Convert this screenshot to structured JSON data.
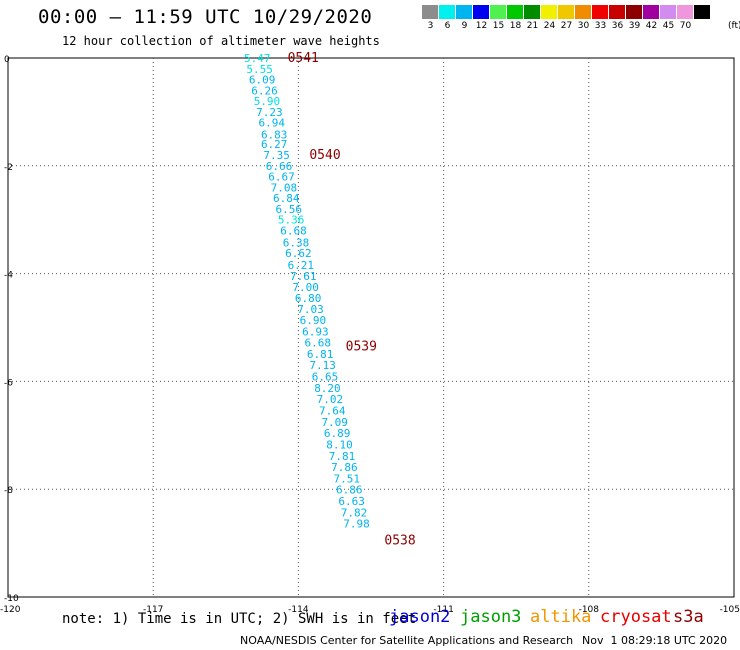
{
  "header": {
    "title": "00:00 – 11:59 UTC 10/29/2020",
    "subtitle": "12 hour collection of altimeter wave heights"
  },
  "legend": {
    "levels": [
      {
        "label": "3",
        "color": "#8c8c8c"
      },
      {
        "label": "6",
        "color": "#00f0f0"
      },
      {
        "label": "9",
        "color": "#00b4f0"
      },
      {
        "label": "12",
        "color": "#0000f0"
      },
      {
        "label": "15",
        "color": "#50f050"
      },
      {
        "label": "18",
        "color": "#00c800"
      },
      {
        "label": "21",
        "color": "#008c00"
      },
      {
        "label": "24",
        "color": "#f0f000"
      },
      {
        "label": "27",
        "color": "#f0c800"
      },
      {
        "label": "30",
        "color": "#f08c00"
      },
      {
        "label": "33",
        "color": "#f00000"
      },
      {
        "label": "36",
        "color": "#c80000"
      },
      {
        "label": "39",
        "color": "#8c0000"
      },
      {
        "label": "42",
        "color": "#a000a0"
      },
      {
        "label": "45",
        "color": "#d28cf0"
      },
      {
        "label": "70",
        "color": "#f096dc"
      },
      {
        "label": "",
        "color": "#000000"
      }
    ],
    "unit": "(ft)"
  },
  "chart_data": {
    "type": "scatter",
    "title": "00:00 – 11:59 UTC 10/29/2020",
    "xlim": [
      -120,
      -105
    ],
    "ylim": [
      -10,
      0
    ],
    "x_ticks": [
      "-120",
      "-117",
      "-114",
      "-111",
      "-108",
      "-105"
    ],
    "x_tick_values": [
      -120,
      -117,
      -114,
      -111,
      -108,
      -105
    ],
    "y_ticks": [
      "0",
      "-2",
      "-4",
      "-6",
      "-8",
      "-10"
    ],
    "y_tick_values": [
      0,
      -2,
      -4,
      -6,
      -8,
      -10
    ],
    "grid": true,
    "series": [
      {
        "type": "swh_labels",
        "points": [
          {
            "lon": -114.85,
            "lat": 0.0,
            "swh": "5.47",
            "color": "#00e0e0"
          },
          {
            "lon": -114.8,
            "lat": -0.2,
            "swh": "5.55",
            "color": "#00e0e0"
          },
          {
            "lon": -114.75,
            "lat": -0.4,
            "swh": "6.09",
            "color": "#00b4f0"
          },
          {
            "lon": -114.7,
            "lat": -0.6,
            "swh": "6.26",
            "color": "#00b4f0"
          },
          {
            "lon": -114.65,
            "lat": -0.8,
            "swh": "5.90",
            "color": "#00e0e0"
          },
          {
            "lon": -114.6,
            "lat": -1.0,
            "swh": "7.23",
            "color": "#00b4f0"
          },
          {
            "lon": -114.55,
            "lat": -1.2,
            "swh": "6.94",
            "color": "#00b4f0"
          },
          {
            "lon": -114.5,
            "lat": -1.42,
            "swh": "6.83",
            "color": "#00b4f0"
          },
          {
            "lon": -114.5,
            "lat": -1.6,
            "swh": "6.27",
            "color": "#00b4f0"
          },
          {
            "lon": -114.45,
            "lat": -1.8,
            "swh": "7.35",
            "color": "#00b4f0"
          },
          {
            "lon": -114.4,
            "lat": -2.0,
            "swh": "6.66",
            "color": "#00b4f0"
          },
          {
            "lon": -114.35,
            "lat": -2.2,
            "swh": "6.67",
            "color": "#00b4f0"
          },
          {
            "lon": -114.3,
            "lat": -2.4,
            "swh": "7.08",
            "color": "#00b4f0"
          },
          {
            "lon": -114.25,
            "lat": -2.6,
            "swh": "6.84",
            "color": "#00b4f0"
          },
          {
            "lon": -114.2,
            "lat": -2.8,
            "swh": "6.56",
            "color": "#00b4f0"
          },
          {
            "lon": -114.15,
            "lat": -3.0,
            "swh": "5.36",
            "color": "#00e0e0"
          },
          {
            "lon": -114.1,
            "lat": -3.2,
            "swh": "6.68",
            "color": "#00b4f0"
          },
          {
            "lon": -114.05,
            "lat": -3.42,
            "swh": "6.38",
            "color": "#00b4f0"
          },
          {
            "lon": -114.0,
            "lat": -3.62,
            "swh": "6.62",
            "color": "#00b4f0"
          },
          {
            "lon": -113.95,
            "lat": -3.84,
            "swh": "6.21",
            "color": "#00b4f0"
          },
          {
            "lon": -113.9,
            "lat": -4.04,
            "swh": "7.61",
            "color": "#00b4f0"
          },
          {
            "lon": -113.85,
            "lat": -4.25,
            "swh": "7.00",
            "color": "#00b4f0"
          },
          {
            "lon": -113.8,
            "lat": -4.45,
            "swh": "6.80",
            "color": "#00b4f0"
          },
          {
            "lon": -113.75,
            "lat": -4.66,
            "swh": "7.03",
            "color": "#00b4f0"
          },
          {
            "lon": -113.7,
            "lat": -4.86,
            "swh": "6.90",
            "color": "#00b4f0"
          },
          {
            "lon": -113.65,
            "lat": -5.07,
            "swh": "6.93",
            "color": "#00b4f0"
          },
          {
            "lon": -113.6,
            "lat": -5.28,
            "swh": "6.68",
            "color": "#00b4f0"
          },
          {
            "lon": -113.55,
            "lat": -5.49,
            "swh": "6.81",
            "color": "#00b4f0"
          },
          {
            "lon": -113.5,
            "lat": -5.7,
            "swh": "7.13",
            "color": "#00b4f0"
          },
          {
            "lon": -113.45,
            "lat": -5.91,
            "swh": "6.65",
            "color": "#00b4f0"
          },
          {
            "lon": -113.4,
            "lat": -6.12,
            "swh": "8.20",
            "color": "#00b4f0"
          },
          {
            "lon": -113.35,
            "lat": -6.33,
            "swh": "7.02",
            "color": "#00b4f0"
          },
          {
            "lon": -113.3,
            "lat": -6.54,
            "swh": "7.64",
            "color": "#00b4f0"
          },
          {
            "lon": -113.25,
            "lat": -6.75,
            "swh": "7.09",
            "color": "#00b4f0"
          },
          {
            "lon": -113.2,
            "lat": -6.96,
            "swh": "6.89",
            "color": "#00b4f0"
          },
          {
            "lon": -113.15,
            "lat": -7.17,
            "swh": "8.10",
            "color": "#00b4f0"
          },
          {
            "lon": -113.1,
            "lat": -7.38,
            "swh": "7.81",
            "color": "#00b4f0"
          },
          {
            "lon": -113.05,
            "lat": -7.59,
            "swh": "7.86",
            "color": "#00b4f0"
          },
          {
            "lon": -113.0,
            "lat": -7.8,
            "swh": "7.51",
            "color": "#00b4f0"
          },
          {
            "lon": -112.95,
            "lat": -8.01,
            "swh": "6.86",
            "color": "#00b4f0"
          },
          {
            "lon": -112.9,
            "lat": -8.22,
            "swh": "6.63",
            "color": "#00b4f0"
          },
          {
            "lon": -112.85,
            "lat": -8.43,
            "swh": "7.82",
            "color": "#00b4f0"
          },
          {
            "lon": -112.8,
            "lat": -8.64,
            "swh": "7.98",
            "color": "#00b4f0"
          }
        ]
      },
      {
        "type": "time_labels",
        "points": [
          {
            "lon": -113.9,
            "lat": 0.0,
            "time": "0541",
            "color": "#8c0000"
          },
          {
            "lon": -113.45,
            "lat": -1.8,
            "time": "0540",
            "color": "#8c0000"
          },
          {
            "lon": -112.7,
            "lat": -5.35,
            "time": "0539",
            "color": "#8c0000"
          },
          {
            "lon": -111.9,
            "lat": -8.95,
            "time": "0538",
            "color": "#8c0000"
          }
        ]
      }
    ]
  },
  "footer": {
    "note": "note: 1) Time is in UTC; 2) SWH is in feet",
    "satellites": [
      {
        "name": "jason2",
        "color": "#0000dc"
      },
      {
        "name": "jason3",
        "color": "#00a000"
      },
      {
        "name": "altika",
        "color": "#f09600"
      },
      {
        "name": "cryosat",
        "color": "#e60000"
      },
      {
        "name": "s3a",
        "color": "#8c0000"
      }
    ],
    "credit": "NOAA/NESDIS Center for Satellite Applications and Research",
    "timestamp": "Nov  1 08:29:18 UTC 2020"
  }
}
